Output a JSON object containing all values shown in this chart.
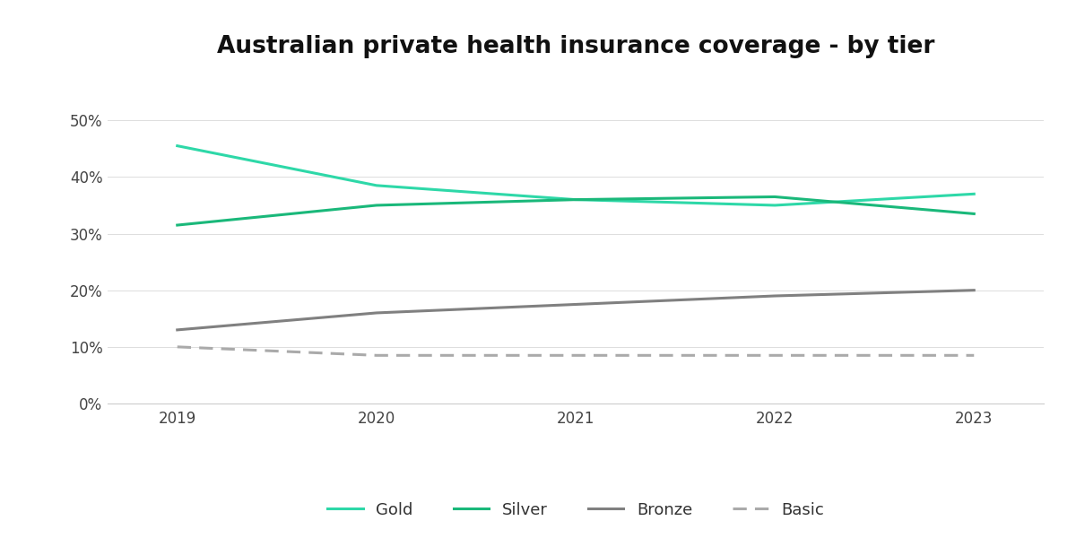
{
  "title": "Australian private health insurance coverage - by tier",
  "years": [
    2019,
    2020,
    2021,
    2022,
    2023
  ],
  "gold": [
    45.5,
    38.5,
    36.0,
    35.0,
    37.0
  ],
  "silver": [
    31.5,
    35.0,
    36.0,
    36.5,
    33.5
  ],
  "bronze": [
    13.0,
    16.0,
    17.5,
    19.0,
    20.0
  ],
  "basic": [
    10.0,
    8.5,
    8.5,
    8.5,
    8.5
  ],
  "gold_color": "#2ed8a8",
  "silver_color": "#1ab87a",
  "bronze_color": "#808080",
  "basic_color": "#aaaaaa",
  "background_color": "#ffffff",
  "ylim": [
    0,
    57
  ],
  "yticks": [
    0,
    10,
    20,
    30,
    40,
    50
  ],
  "title_fontsize": 19,
  "tick_fontsize": 12,
  "legend_labels": [
    "Gold",
    "Silver",
    "Bronze",
    "Basic"
  ],
  "line_width": 2.2
}
